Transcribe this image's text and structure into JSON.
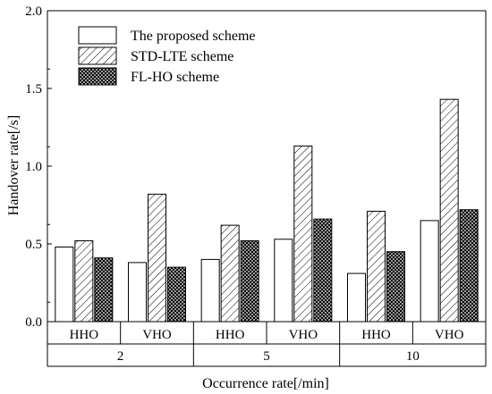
{
  "chart_data": {
    "type": "bar",
    "title": "",
    "xlabel": "Occurrence rate[/min]",
    "ylabel": "Handover rate[/s]",
    "ylim": [
      0,
      2.0
    ],
    "yticks": [
      "0.0",
      "0.5",
      "1.0",
      "1.5",
      "2.0"
    ],
    "grid": false,
    "legend_position": "top-left",
    "groups": [
      {
        "label": "2",
        "subcategories": [
          "HHO",
          "VHO"
        ]
      },
      {
        "label": "5",
        "subcategories": [
          "HHO",
          "VHO"
        ]
      },
      {
        "label": "10",
        "subcategories": [
          "HHO",
          "VHO"
        ]
      }
    ],
    "categories": [
      "2 HHO",
      "2 VHO",
      "5 HHO",
      "5 VHO",
      "10 HHO",
      "10 VHO"
    ],
    "series": [
      {
        "name": "The proposed scheme",
        "pattern": "plain",
        "values": [
          0.48,
          0.38,
          0.4,
          0.53,
          0.31,
          0.65
        ]
      },
      {
        "name": "STD-LTE scheme",
        "pattern": "hatch",
        "values": [
          0.52,
          0.82,
          0.62,
          1.13,
          0.71,
          1.43
        ]
      },
      {
        "name": "FL-HO scheme",
        "pattern": "crosshatch",
        "values": [
          0.41,
          0.35,
          0.52,
          0.66,
          0.45,
          0.72
        ]
      }
    ]
  }
}
